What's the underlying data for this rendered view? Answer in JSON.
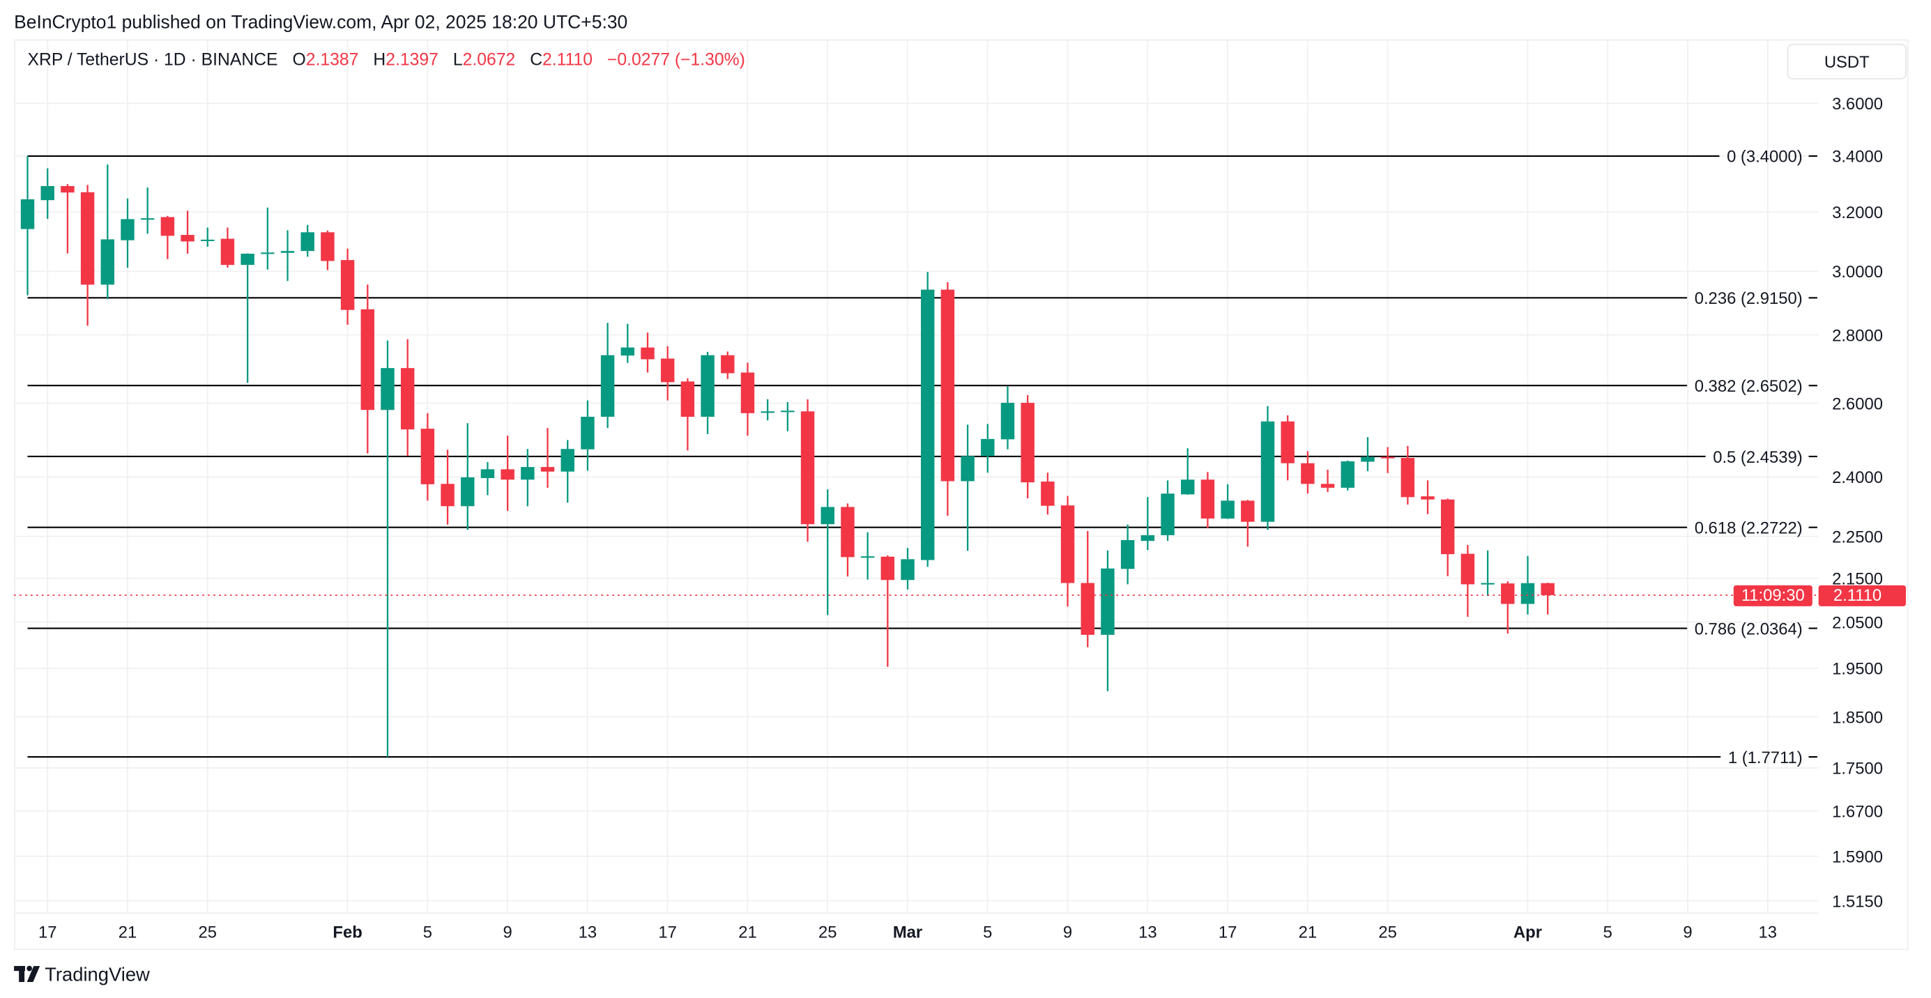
{
  "header": {
    "published": "BeInCrypto1 published on TradingView.com, Apr 02, 2025 18:20 UTC+5:30"
  },
  "legend": {
    "symbol": "XRP / TetherUS · 1D · BINANCE",
    "o_label": "O",
    "o": "2.1387",
    "h_label": "H",
    "h": "2.1397",
    "l_label": "L",
    "l": "2.0672",
    "c_label": "C",
    "c": "2.1110",
    "change": "−0.0277 (−1.30%)"
  },
  "currency": "USDT",
  "last_price": {
    "price": "2.1110",
    "countdown": "11:09:30",
    "value": 2.111
  },
  "footer": {
    "logo_text": "TradingView"
  },
  "colors": {
    "up": "#089981",
    "down": "#f23645",
    "fib": "#000000",
    "grid": "#f0f0f0",
    "text": "#131722"
  },
  "chart_data": {
    "type": "candlestick",
    "title": "",
    "y_scale": "log",
    "ylim": [
      1.48,
      3.72
    ],
    "grid": true,
    "y_ticks": [
      "3.6000",
      "3.4000",
      "3.2000",
      "3.0000",
      "2.8000",
      "2.6000",
      "2.4000",
      "2.2500",
      "2.1500",
      "2.0500",
      "1.9500",
      "1.8500",
      "1.7500",
      "1.6700",
      "1.5900",
      "1.5150"
    ],
    "x_ticks": [
      {
        "date": "2025-01-17",
        "label": "17",
        "bold": false
      },
      {
        "date": "2025-01-21",
        "label": "21",
        "bold": false
      },
      {
        "date": "2025-01-25",
        "label": "25",
        "bold": false
      },
      {
        "date": "2025-02-01",
        "label": "Feb",
        "bold": true
      },
      {
        "date": "2025-02-05",
        "label": "5",
        "bold": false
      },
      {
        "date": "2025-02-09",
        "label": "9",
        "bold": false
      },
      {
        "date": "2025-02-13",
        "label": "13",
        "bold": false
      },
      {
        "date": "2025-02-17",
        "label": "17",
        "bold": false
      },
      {
        "date": "2025-02-21",
        "label": "21",
        "bold": false
      },
      {
        "date": "2025-02-25",
        "label": "25",
        "bold": false
      },
      {
        "date": "2025-03-01",
        "label": "Mar",
        "bold": true
      },
      {
        "date": "2025-03-05",
        "label": "5",
        "bold": false
      },
      {
        "date": "2025-03-09",
        "label": "9",
        "bold": false
      },
      {
        "date": "2025-03-13",
        "label": "13",
        "bold": false
      },
      {
        "date": "2025-03-17",
        "label": "17",
        "bold": false
      },
      {
        "date": "2025-03-21",
        "label": "21",
        "bold": false
      },
      {
        "date": "2025-03-25",
        "label": "25",
        "bold": false
      },
      {
        "date": "2025-04-01",
        "label": "Apr",
        "bold": true
      },
      {
        "date": "2025-04-05",
        "label": "5",
        "bold": false
      },
      {
        "date": "2025-04-09",
        "label": "9",
        "bold": false
      },
      {
        "date": "2025-04-13",
        "label": "13",
        "bold": false
      }
    ],
    "fib_levels": [
      {
        "ratio": "0",
        "price": 3.4,
        "label": "0 (3.4000)"
      },
      {
        "ratio": "0.236",
        "price": 2.915,
        "label": "0.236 (2.9150)"
      },
      {
        "ratio": "0.382",
        "price": 2.6502,
        "label": "0.382 (2.6502)"
      },
      {
        "ratio": "0.5",
        "price": 2.4539,
        "label": "0.5 (2.4539)"
      },
      {
        "ratio": "0.618",
        "price": 2.2722,
        "label": "0.618 (2.2722)"
      },
      {
        "ratio": "0.786",
        "price": 2.0364,
        "label": "0.786 (2.0364)"
      },
      {
        "ratio": "1",
        "price": 1.7711,
        "label": "1 (1.7711)"
      }
    ],
    "fib_start_date": "2025-01-16",
    "candles_columns": [
      "date",
      "open",
      "high",
      "low",
      "close"
    ],
    "candles": [
      [
        "2025-01-16",
        3.141,
        3.4,
        2.923,
        3.244
      ],
      [
        "2025-01-17",
        3.241,
        3.355,
        3.176,
        3.291
      ],
      [
        "2025-01-18",
        3.291,
        3.298,
        3.059,
        3.268
      ],
      [
        "2025-01-19",
        3.269,
        3.295,
        2.828,
        2.957
      ],
      [
        "2025-01-20",
        2.957,
        3.369,
        2.911,
        3.106
      ],
      [
        "2025-01-21",
        3.103,
        3.247,
        3.012,
        3.175
      ],
      [
        "2025-01-22",
        3.175,
        3.286,
        3.125,
        3.178
      ],
      [
        "2025-01-23",
        3.182,
        3.186,
        3.04,
        3.118
      ],
      [
        "2025-01-24",
        3.121,
        3.204,
        3.058,
        3.099
      ],
      [
        "2025-01-25",
        3.103,
        3.146,
        3.081,
        3.105
      ],
      [
        "2025-01-26",
        3.108,
        3.146,
        3.012,
        3.021
      ],
      [
        "2025-01-27",
        3.021,
        3.059,
        2.658,
        3.058
      ],
      [
        "2025-01-28",
        3.058,
        3.215,
        3.006,
        3.062
      ],
      [
        "2025-01-29",
        3.061,
        3.137,
        2.969,
        3.067
      ],
      [
        "2025-01-30",
        3.067,
        3.155,
        3.048,
        3.13
      ],
      [
        "2025-01-31",
        3.13,
        3.136,
        3.004,
        3.034
      ],
      [
        "2025-02-01",
        3.037,
        3.075,
        2.831,
        2.877
      ],
      [
        "2025-02-02",
        2.879,
        2.957,
        2.462,
        2.581
      ],
      [
        "2025-02-03",
        2.581,
        2.783,
        1.7711,
        2.701
      ],
      [
        "2025-02-04",
        2.701,
        2.787,
        2.455,
        2.527
      ],
      [
        "2025-02-05",
        2.529,
        2.572,
        2.339,
        2.381
      ],
      [
        "2025-02-06",
        2.382,
        2.472,
        2.279,
        2.325
      ],
      [
        "2025-02-07",
        2.325,
        2.544,
        2.266,
        2.399
      ],
      [
        "2025-02-08",
        2.397,
        2.439,
        2.353,
        2.42
      ],
      [
        "2025-02-09",
        2.42,
        2.51,
        2.313,
        2.393
      ],
      [
        "2025-02-10",
        2.393,
        2.474,
        2.325,
        2.426
      ],
      [
        "2025-02-11",
        2.426,
        2.531,
        2.372,
        2.414
      ],
      [
        "2025-02-12",
        2.414,
        2.498,
        2.334,
        2.474
      ],
      [
        "2025-02-13",
        2.473,
        2.608,
        2.416,
        2.562
      ],
      [
        "2025-02-14",
        2.562,
        2.837,
        2.531,
        2.739
      ],
      [
        "2025-02-15",
        2.738,
        2.834,
        2.716,
        2.762
      ],
      [
        "2025-02-16",
        2.762,
        2.807,
        2.688,
        2.727
      ],
      [
        "2025-02-17",
        2.729,
        2.766,
        2.608,
        2.66
      ],
      [
        "2025-02-18",
        2.662,
        2.671,
        2.47,
        2.562
      ],
      [
        "2025-02-19",
        2.562,
        2.749,
        2.514,
        2.739
      ],
      [
        "2025-02-20",
        2.739,
        2.75,
        2.669,
        2.686
      ],
      [
        "2025-02-21",
        2.688,
        2.717,
        2.51,
        2.572
      ],
      [
        "2025-02-22",
        2.576,
        2.611,
        2.552,
        2.577
      ],
      [
        "2025-02-23",
        2.578,
        2.603,
        2.522,
        2.579
      ],
      [
        "2025-02-24",
        2.577,
        2.611,
        2.237,
        2.28
      ],
      [
        "2025-02-25",
        2.28,
        2.368,
        2.066,
        2.323
      ],
      [
        "2025-02-26",
        2.323,
        2.332,
        2.154,
        2.2
      ],
      [
        "2025-02-27",
        2.201,
        2.26,
        2.147,
        2.202
      ],
      [
        "2025-02-28",
        2.201,
        2.204,
        1.953,
        2.146
      ],
      [
        "2025-03-01",
        2.146,
        2.222,
        2.124,
        2.195
      ],
      [
        "2025-03-02",
        2.193,
        2.998,
        2.177,
        2.941
      ],
      [
        "2025-03-03",
        2.941,
        2.965,
        2.301,
        2.389
      ],
      [
        "2025-03-04",
        2.389,
        2.54,
        2.215,
        2.455
      ],
      [
        "2025-03-05",
        2.455,
        2.542,
        2.411,
        2.501
      ],
      [
        "2025-03-06",
        2.5,
        2.649,
        2.473,
        2.601
      ],
      [
        "2025-03-07",
        2.601,
        2.623,
        2.345,
        2.386
      ],
      [
        "2025-03-08",
        2.388,
        2.411,
        2.304,
        2.326
      ],
      [
        "2025-03-09",
        2.327,
        2.351,
        2.085,
        2.139
      ],
      [
        "2025-03-10",
        2.139,
        2.263,
        1.995,
        2.022
      ],
      [
        "2025-03-11",
        2.022,
        2.216,
        1.902,
        2.173
      ],
      [
        "2025-03-12",
        2.172,
        2.279,
        2.136,
        2.241
      ],
      [
        "2025-03-13",
        2.239,
        2.348,
        2.217,
        2.253
      ],
      [
        "2025-03-14",
        2.253,
        2.391,
        2.239,
        2.357
      ],
      [
        "2025-03-15",
        2.355,
        2.476,
        2.354,
        2.393
      ],
      [
        "2025-03-16",
        2.393,
        2.413,
        2.27,
        2.294
      ],
      [
        "2025-03-17",
        2.294,
        2.381,
        2.293,
        2.339
      ],
      [
        "2025-03-18",
        2.339,
        2.341,
        2.225,
        2.286
      ],
      [
        "2025-03-19",
        2.286,
        2.592,
        2.266,
        2.549
      ],
      [
        "2025-03-20",
        2.549,
        2.566,
        2.391,
        2.436
      ],
      [
        "2025-03-21",
        2.436,
        2.468,
        2.357,
        2.382
      ],
      [
        "2025-03-22",
        2.382,
        2.419,
        2.361,
        2.372
      ],
      [
        "2025-03-23",
        2.372,
        2.443,
        2.365,
        2.441
      ],
      [
        "2025-03-24",
        2.44,
        2.506,
        2.415,
        2.453
      ],
      [
        "2025-03-25",
        2.453,
        2.479,
        2.41,
        2.451
      ],
      [
        "2025-03-26",
        2.45,
        2.482,
        2.329,
        2.348
      ],
      [
        "2025-03-27",
        2.35,
        2.391,
        2.305,
        2.342
      ],
      [
        "2025-03-28",
        2.342,
        2.344,
        2.155,
        2.207
      ],
      [
        "2025-03-29",
        2.208,
        2.229,
        2.062,
        2.136
      ],
      [
        "2025-03-30",
        2.138,
        2.216,
        2.109,
        2.139
      ],
      [
        "2025-03-31",
        2.138,
        2.143,
        2.025,
        2.091
      ],
      [
        "2025-04-01",
        2.091,
        2.203,
        2.067,
        2.1387
      ],
      [
        "2025-04-02",
        2.1387,
        2.1397,
        2.0672,
        2.111
      ]
    ]
  }
}
